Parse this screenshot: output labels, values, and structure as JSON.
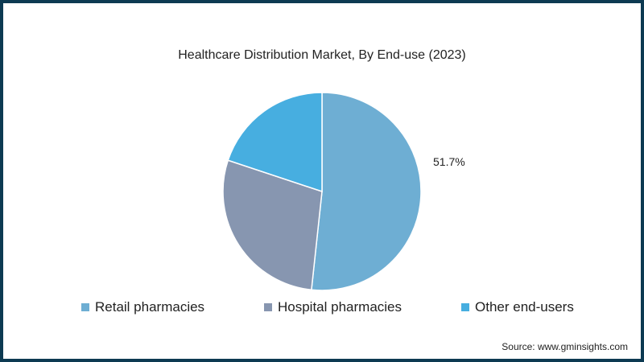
{
  "chart_data": {
    "type": "pie",
    "title": "Healthcare Distribution Market, By End-use (2023)",
    "slices": [
      {
        "label": "Retail pharmacies",
        "value": 51.7,
        "color": "#6eaed3",
        "data_label": "51.7%"
      },
      {
        "label": "Hospital pharmacies",
        "value": 28.4,
        "color": "#8796b0"
      },
      {
        "label": "Other end-users",
        "value": 19.9,
        "color": "#47aee0"
      }
    ],
    "legend_placement": "bottom"
  },
  "source": "Source: www.gminsights.com"
}
